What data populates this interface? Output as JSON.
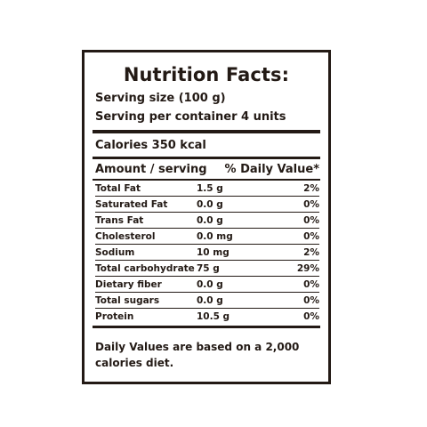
{
  "label": {
    "title": "Nutrition Facts:",
    "serving_size": "Serving size (100 g)",
    "servings_per_container": "Serving per container 4 units",
    "calories": "Calories 350 kcal",
    "amount_header": "Amount / serving",
    "dv_header": "% Daily Value*",
    "rows": [
      {
        "name": "Total Fat",
        "amount": "1.5 g",
        "dv": "2%"
      },
      {
        "name": "Saturated Fat",
        "amount": "0.0 g",
        "dv": "0%"
      },
      {
        "name": "Trans Fat",
        "amount": "0.0 g",
        "dv": "0%"
      },
      {
        "name": "Cholesterol",
        "amount": "0.0 mg",
        "dv": "0%"
      },
      {
        "name": "Sodium",
        "amount": "10 mg",
        "dv": "2%"
      },
      {
        "name": "Total carbohydrate",
        "amount": "75 g",
        "dv": "29%"
      },
      {
        "name": "Dietary fiber",
        "amount": "0.0 g",
        "dv": "0%"
      },
      {
        "name": "Total sugars",
        "amount": "0.0 g",
        "dv": "0%"
      },
      {
        "name": "Protein",
        "amount": "10.5 g",
        "dv": "0%"
      }
    ],
    "footnote": "Daily Values are based on a 2,000 calories diet."
  }
}
